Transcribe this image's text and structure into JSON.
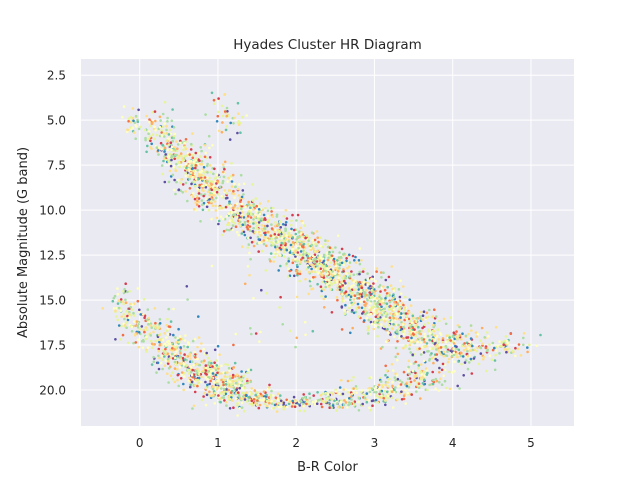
{
  "chart_data": {
    "type": "scatter",
    "title": "Hyades Cluster HR Diagram",
    "xlabel": "B-R Color",
    "ylabel": "Absolute Magnitude (G band)",
    "xlim": [
      -0.75,
      5.55
    ],
    "ylim": [
      22.0,
      1.6
    ],
    "y_inverted": true,
    "grid": true,
    "xticks": [
      0,
      1,
      2,
      3,
      4,
      5
    ],
    "xtick_labels": [
      "0",
      "1",
      "2",
      "3",
      "4",
      "5"
    ],
    "yticks": [
      2.5,
      5.0,
      7.5,
      10.0,
      12.5,
      15.0,
      17.5,
      20.0
    ],
    "ytick_labels": [
      "2.5",
      "5.0",
      "7.5",
      "10.0",
      "12.5",
      "15.0",
      "17.5",
      "20.0"
    ],
    "colormap": "Spectral",
    "colors": {
      "background": "#eaeaf2",
      "grid": "#ffffff",
      "palette": [
        "#d53e4f",
        "#f46d43",
        "#fdae61",
        "#fee08b",
        "#ffffbf",
        "#e6f598",
        "#abdda4",
        "#66c2a5",
        "#3288bd",
        "#5e4fa2"
      ]
    },
    "point_size": 1.3,
    "series": [
      {
        "values": [
          {
            "x": -0.1,
            "y": 5.2,
            "n": 25,
            "sx": 0.06,
            "sy": 0.4
          },
          {
            "x": 0.2,
            "y": 5.5,
            "n": 60,
            "sx": 0.12,
            "sy": 0.6
          },
          {
            "x": 0.45,
            "y": 6.6,
            "n": 110,
            "sx": 0.14,
            "sy": 0.6
          },
          {
            "x": 0.7,
            "y": 7.8,
            "n": 150,
            "sx": 0.14,
            "sy": 0.6
          },
          {
            "x": 0.95,
            "y": 9.0,
            "n": 170,
            "sx": 0.15,
            "sy": 0.6
          },
          {
            "x": 1.1,
            "y": 4.6,
            "n": 45,
            "sx": 0.13,
            "sy": 0.7
          },
          {
            "x": 1.35,
            "y": 10.2,
            "n": 180,
            "sx": 0.16,
            "sy": 0.6
          },
          {
            "x": 1.75,
            "y": 11.3,
            "n": 200,
            "sx": 0.18,
            "sy": 0.6
          },
          {
            "x": 2.1,
            "y": 12.4,
            "n": 220,
            "sx": 0.18,
            "sy": 0.6
          },
          {
            "x": 2.45,
            "y": 13.4,
            "n": 220,
            "sx": 0.18,
            "sy": 0.6
          },
          {
            "x": 2.8,
            "y": 14.5,
            "n": 220,
            "sx": 0.18,
            "sy": 0.6
          },
          {
            "x": 3.15,
            "y": 15.6,
            "n": 200,
            "sx": 0.18,
            "sy": 0.6
          },
          {
            "x": 3.5,
            "y": 16.7,
            "n": 180,
            "sx": 0.2,
            "sy": 0.6
          },
          {
            "x": 3.9,
            "y": 17.6,
            "n": 160,
            "sx": 0.22,
            "sy": 0.6
          },
          {
            "x": 4.3,
            "y": 17.8,
            "n": 90,
            "sx": 0.2,
            "sy": 0.5
          },
          {
            "x": 4.7,
            "y": 17.5,
            "n": 40,
            "sx": 0.2,
            "sy": 0.4
          },
          {
            "x": -0.2,
            "y": 15.5,
            "n": 60,
            "sx": 0.1,
            "sy": 0.6
          },
          {
            "x": 0.1,
            "y": 16.8,
            "n": 110,
            "sx": 0.14,
            "sy": 0.6
          },
          {
            "x": 0.45,
            "y": 18.0,
            "n": 150,
            "sx": 0.15,
            "sy": 0.6
          },
          {
            "x": 0.8,
            "y": 19.0,
            "n": 180,
            "sx": 0.16,
            "sy": 0.6
          },
          {
            "x": 1.15,
            "y": 19.8,
            "n": 170,
            "sx": 0.16,
            "sy": 0.5
          },
          {
            "x": 1.5,
            "y": 20.5,
            "n": 120,
            "sx": 0.2,
            "sy": 0.3
          },
          {
            "x": 2.0,
            "y": 20.7,
            "n": 90,
            "sx": 0.22,
            "sy": 0.2
          },
          {
            "x": 2.6,
            "y": 20.5,
            "n": 110,
            "sx": 0.22,
            "sy": 0.3
          },
          {
            "x": 3.1,
            "y": 20.0,
            "n": 110,
            "sx": 0.2,
            "sy": 0.4
          },
          {
            "x": 3.6,
            "y": 19.3,
            "n": 100,
            "sx": 0.2,
            "sy": 0.5
          },
          {
            "x": 1.6,
            "y": 15.0,
            "n": 40,
            "sx": 0.6,
            "sy": 2.0
          }
        ]
      }
    ]
  }
}
